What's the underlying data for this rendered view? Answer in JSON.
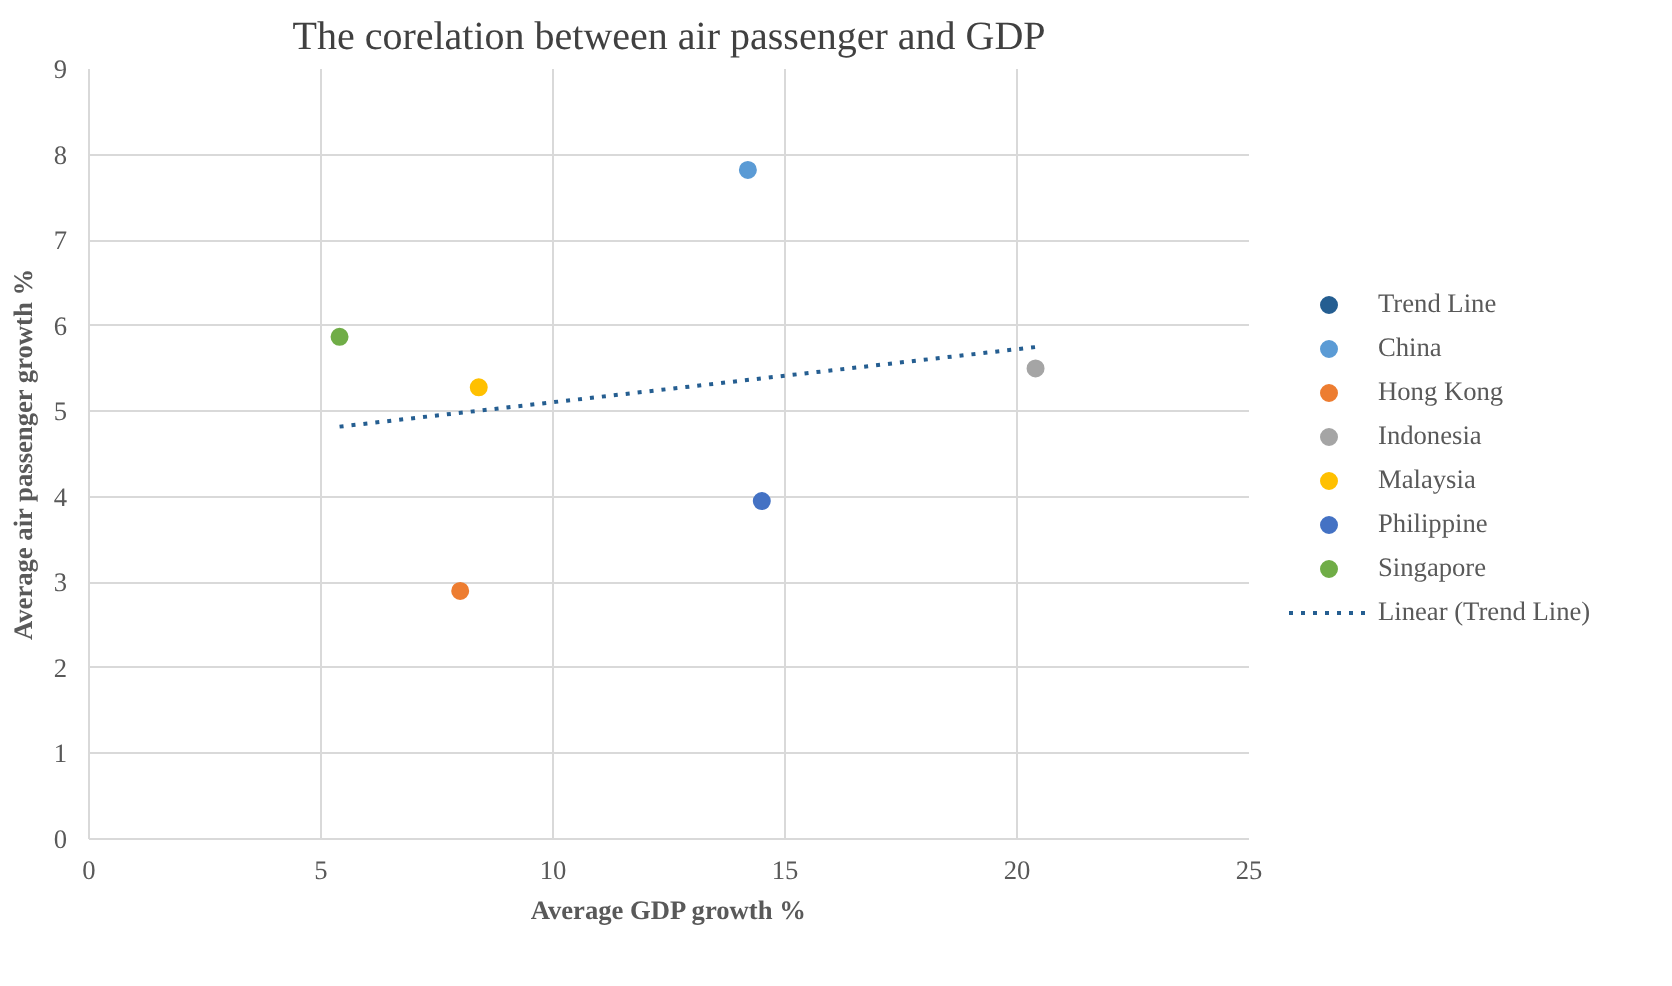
{
  "chart_data": {
    "type": "scatter",
    "title": "The corelation between air passenger and GDP",
    "xlabel": "Average GDP growth %",
    "ylabel": "Average air passenger growth %",
    "xlim": [
      0,
      25
    ],
    "xticks": [
      0,
      5,
      10,
      15,
      20,
      25
    ],
    "ylim": [
      0,
      9
    ],
    "yticks": [
      0,
      1,
      2,
      3,
      4,
      5,
      6,
      7,
      8,
      9
    ],
    "grid": true,
    "legend": "right",
    "marker": "circle",
    "series": [
      {
        "name": "Trend Line",
        "color": "#255e91"
      },
      {
        "name": "China",
        "color": "#5b9bd5",
        "x": [
          14.2
        ],
        "values": [
          7.82
        ]
      },
      {
        "name": "Hong Kong",
        "color": "#ed7d31",
        "x": [
          8.0
        ],
        "values": [
          2.9
        ]
      },
      {
        "name": "Indonesia",
        "color": "#a5a5a5",
        "x": [
          20.4
        ],
        "values": [
          5.5
        ]
      },
      {
        "name": "Malaysia",
        "color": "#ffc000",
        "x": [
          8.4
        ],
        "values": [
          5.28
        ]
      },
      {
        "name": "Philippine",
        "color": "#4472c4",
        "x": [
          14.5
        ],
        "values": [
          3.95
        ]
      },
      {
        "name": "Singapore",
        "color": "#70ad47",
        "x": [
          5.4
        ],
        "values": [
          5.87
        ]
      },
      {
        "name": "Linear (Trend Line)",
        "type": "line",
        "color": "#255e91",
        "line_style": "dotted",
        "marker": "none",
        "x": [
          5.4,
          20.4
        ],
        "values": [
          4.82,
          5.75
        ]
      }
    ]
  }
}
